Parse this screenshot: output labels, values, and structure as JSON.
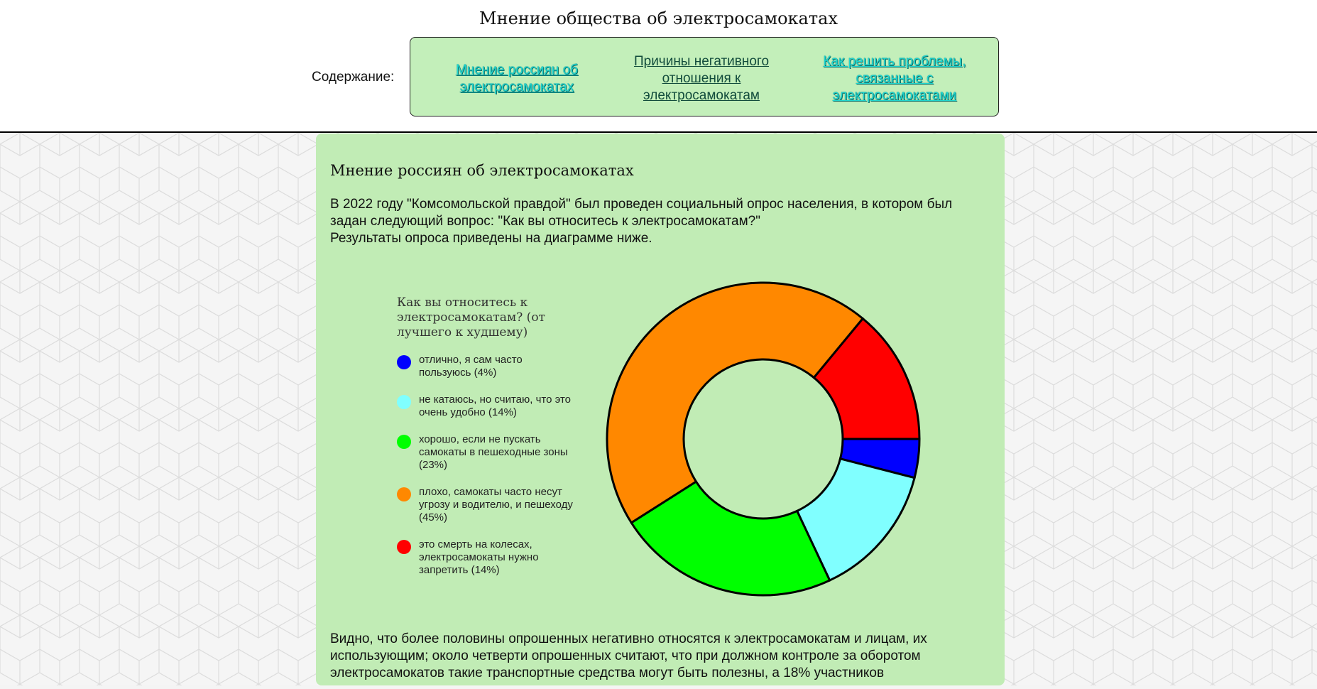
{
  "header": {
    "site_title": "Мнение общества об электросамокатах",
    "toc_label": "Содержание:",
    "toc_links": [
      "Мнение россиян об электросамокатах",
      "Причины негативного отношения к электросамокатам",
      "Как решить проблемы, связанные с электросамокатами"
    ]
  },
  "section": {
    "title": "Мнение россиян об электросамокатах",
    "intro_1": "В 2022 году \"Комсомольской правдой\" был проведен социальный опрос населения, в котором был задан следующий вопрос: \"Как вы относитесь к электросамокатам?\"",
    "intro_2": "Результаты опроса приведены на диаграмме ниже.",
    "conclusion": "Видно, что более половины опрошенных негативно относятся к электросамокатам и лицам, их использующим; около четверти опрошенных считают, что при должном контроле за оборотом электросамокатов такие транспортные средства могут быть полезны, а 18% участников"
  },
  "chart_data": {
    "type": "pie",
    "donut": true,
    "title": "Как вы относитесь к электросамокатам? (от лучшего к худшему)",
    "legend_placement": "left",
    "slices": [
      {
        "label": "отлично, я сам часто пользуюсь (4%)",
        "value": 4,
        "color": "#0000ff"
      },
      {
        "label": "не катаюсь, но считаю, что это очень удобно (14%)",
        "value": 14,
        "color": "#80ffff"
      },
      {
        "label": "хорошо, если не пускать самокаты в пешеходные зоны (23%)",
        "value": 23,
        "color": "#00ff00"
      },
      {
        "label": "плохо, самокаты часто несут угрозу и водителю, и пешеходу (45%)",
        "value": 45,
        "color": "#ff8800"
      },
      {
        "label": "это смерть на колесах, электросамокаты нужно запретить (14%)",
        "value": 14,
        "color": "#ff0000"
      }
    ]
  }
}
